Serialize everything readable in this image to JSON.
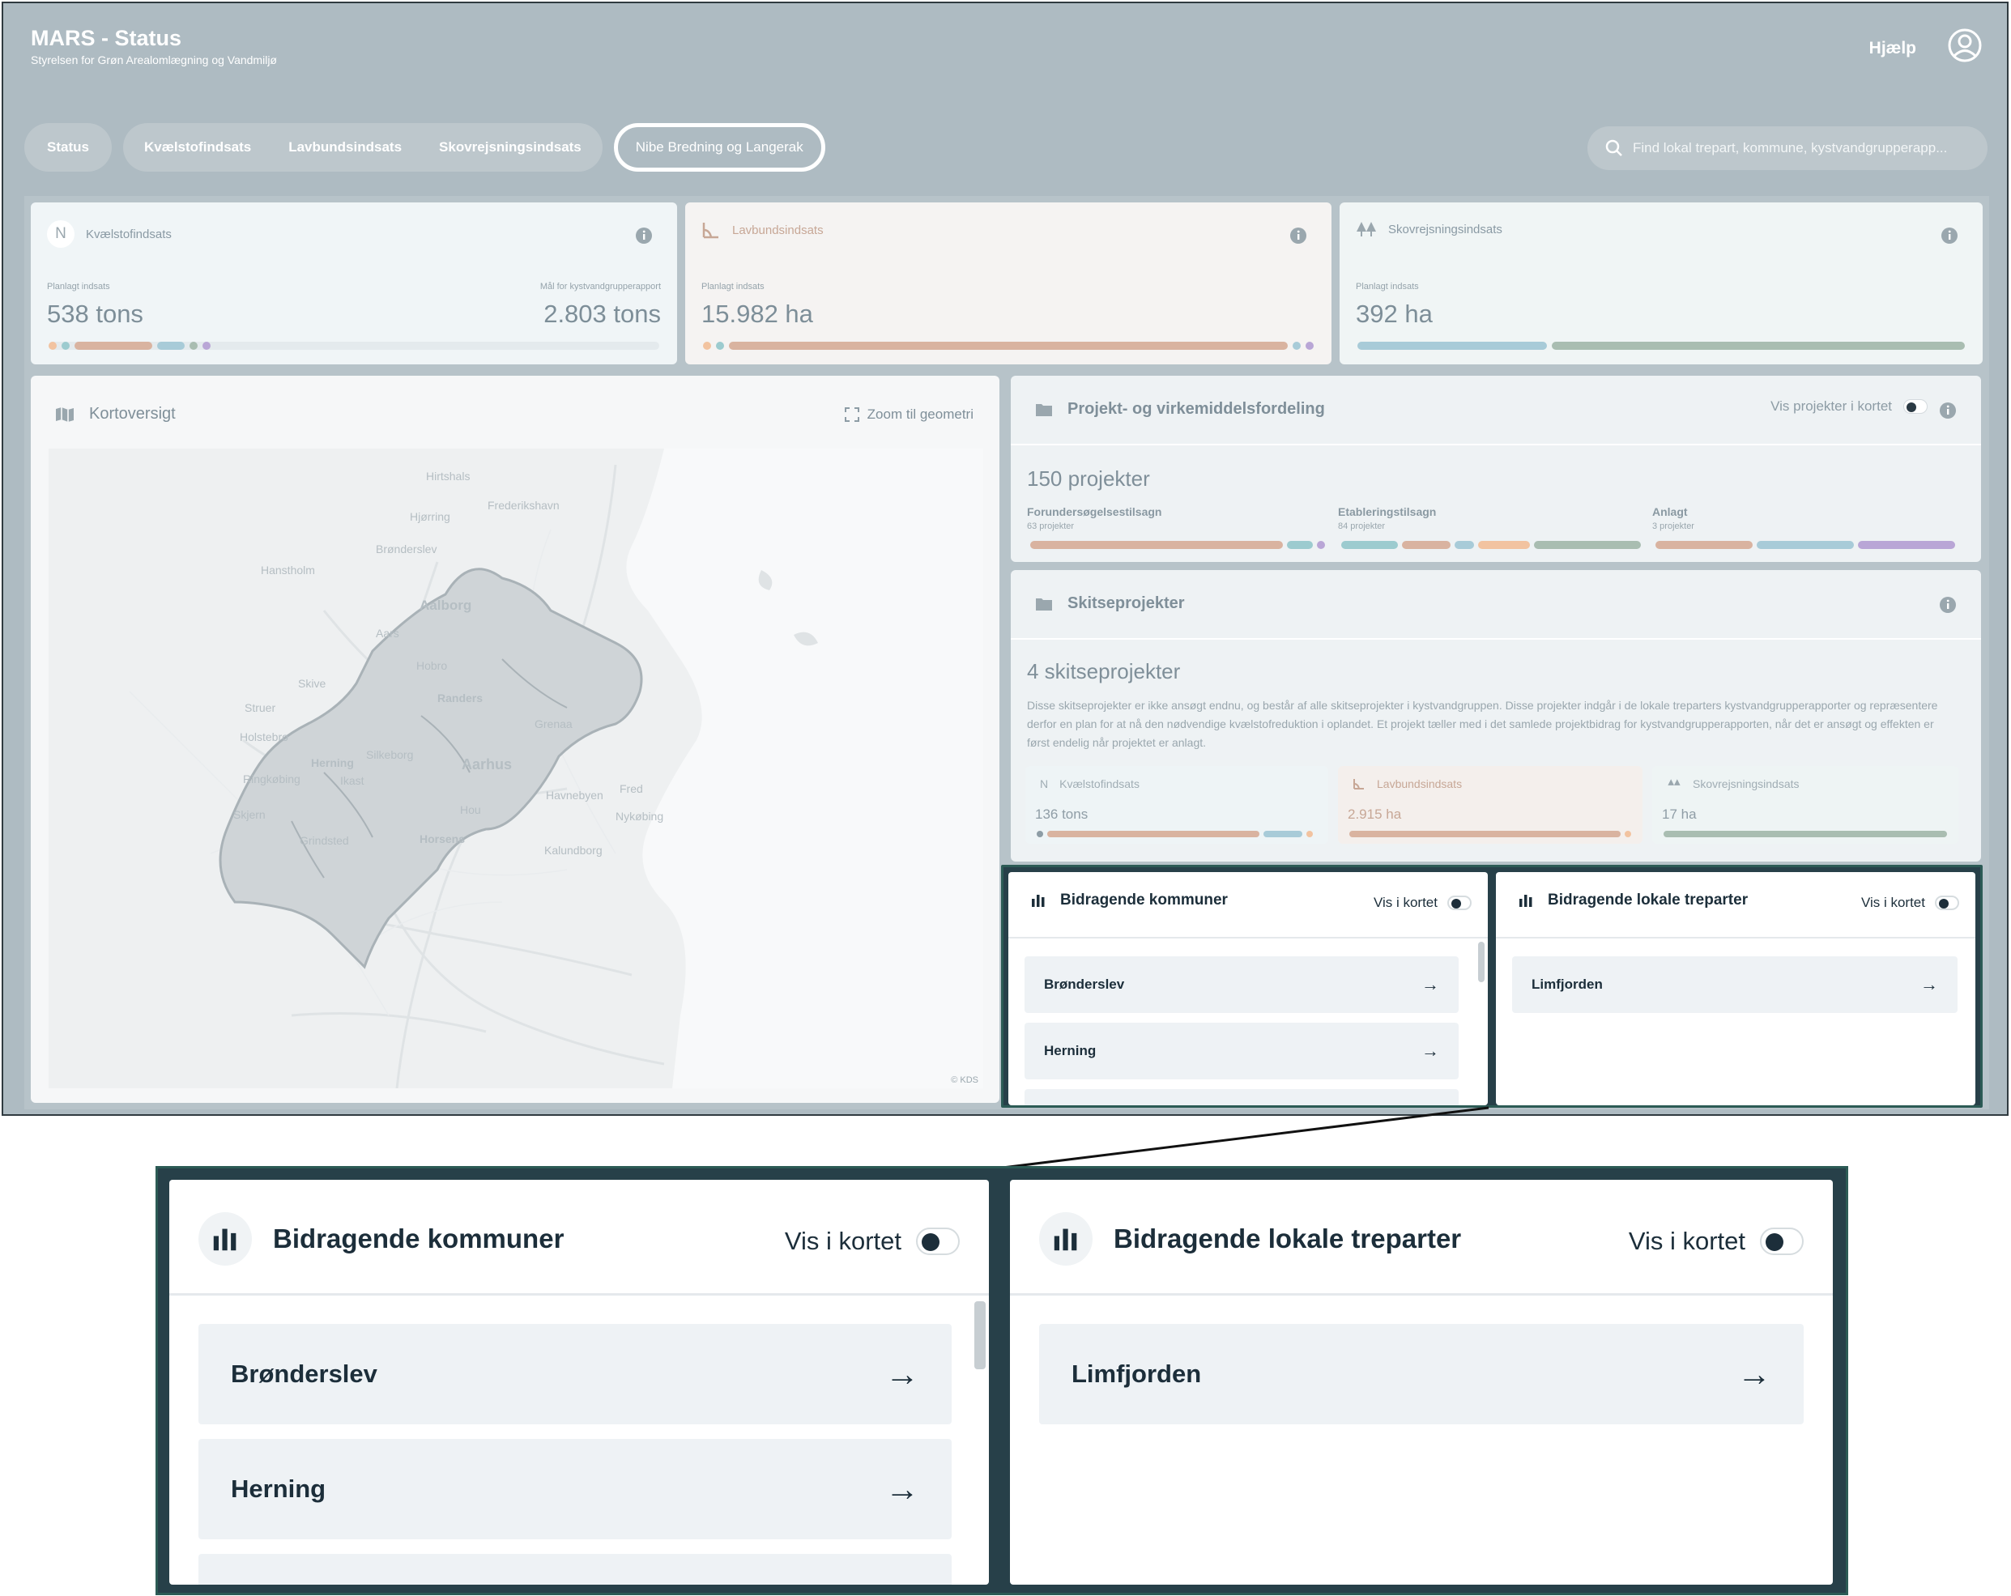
{
  "header": {
    "title": "MARS - Status",
    "subtitle": "Styrelsen for Grøn Arealomlægning og Vandmiljø",
    "help_label": "Hjælp",
    "user_icon": "user-circle-icon"
  },
  "nav": {
    "tabs": [
      "Status",
      "Kvælstofindsats",
      "Lavbundsindsats",
      "Skovrejsningsindsats"
    ],
    "active_tab": "Nibe Bredning og Langerak"
  },
  "search": {
    "placeholder": "Find lokal trepart, kommune, kystvandgrupperapp..."
  },
  "stats": {
    "kvaelstof": {
      "title": "Kvælstofindsats",
      "badge": "N",
      "planned_label": "Planlagt indsats",
      "planned_value": "538 tons",
      "goal_label": "Mål for kystvandgrupperapport",
      "goal_value": "2.803 tons",
      "progress": 0.19
    },
    "lavbund": {
      "title": "Lavbundsindsats",
      "planned_label": "Planlagt indsats",
      "planned_value": "15.982 ha"
    },
    "skov": {
      "title": "Skovrejsningsindsats",
      "planned_label": "Planlagt indsats",
      "planned_value": "392 ha"
    }
  },
  "map": {
    "title": "Kortoversigt",
    "zoom_label": "Zoom til geometri",
    "attribution": "© KDS",
    "places": [
      "Hirtshals",
      "Frederikshavn",
      "Hjørring",
      "Brønderslev",
      "Hanstholm",
      "Aalborg",
      "Aars",
      "Hobro",
      "Skive",
      "Struer",
      "Randers",
      "Grenaa",
      "Holstebro",
      "Herning",
      "Silkeborg",
      "Aarhus",
      "Ringkøbing",
      "Ikast",
      "Skjern",
      "Hou",
      "Havnebyen",
      "Nykøbing",
      "Grindsted",
      "Horsens",
      "Kalundborg",
      "Fred"
    ]
  },
  "projects": {
    "title": "Projekt- og virkemiddelsfordeling",
    "toggle_label": "Vis projekter i kortet",
    "count": "150 projekter",
    "columns": [
      {
        "label": "Forundersøgelsestilsagn",
        "sub": "63 projekter"
      },
      {
        "label": "Etableringstilsagn",
        "sub": "84 projekter"
      },
      {
        "label": "Anlagt",
        "sub": "3 projekter"
      }
    ]
  },
  "skitse": {
    "title": "Skitseprojekter",
    "count": "4 skitseprojekter",
    "description": "Disse skitseprojekter er ikke ansøgt endnu, og består af alle skitseprojekter i kystvandgruppen. Disse projekter indgår i de lokale treparters kystvandgrupperapporter og repræsentere derfor en plan for at nå den nødvendige kvælstofreduktion i oplandet. Et projekt tæller med i det samlede projektbidrag for kystvandgrupperapporten, når det er ansøgt og effekten er først endelig når projektet er anlagt.",
    "mini": [
      {
        "title": "Kvælstofindsats",
        "badge": "N",
        "value": "136 tons"
      },
      {
        "title": "Lavbundsindsats",
        "value": "2.915 ha"
      },
      {
        "title": "Skovrejsningsindsats",
        "value": "17 ha"
      }
    ]
  },
  "kommuner": {
    "title": "Bidragende kommuner",
    "toggle_label": "Vis i kortet",
    "items": [
      "Brønderslev",
      "Herning"
    ]
  },
  "treparter": {
    "title": "Bidragende lokale treparter",
    "toggle_label": "Vis i kortet",
    "items": [
      "Limfjorden"
    ]
  },
  "colors": {
    "tan": "#d9b3a0",
    "teal": "#9ccbcf",
    "sage": "#a9bdb1",
    "peach": "#f2c3a0",
    "purple": "#b9a6d6",
    "blue": "#a8cbd8",
    "highlight": "#2c5b55",
    "navy": "#1c2e3a"
  }
}
